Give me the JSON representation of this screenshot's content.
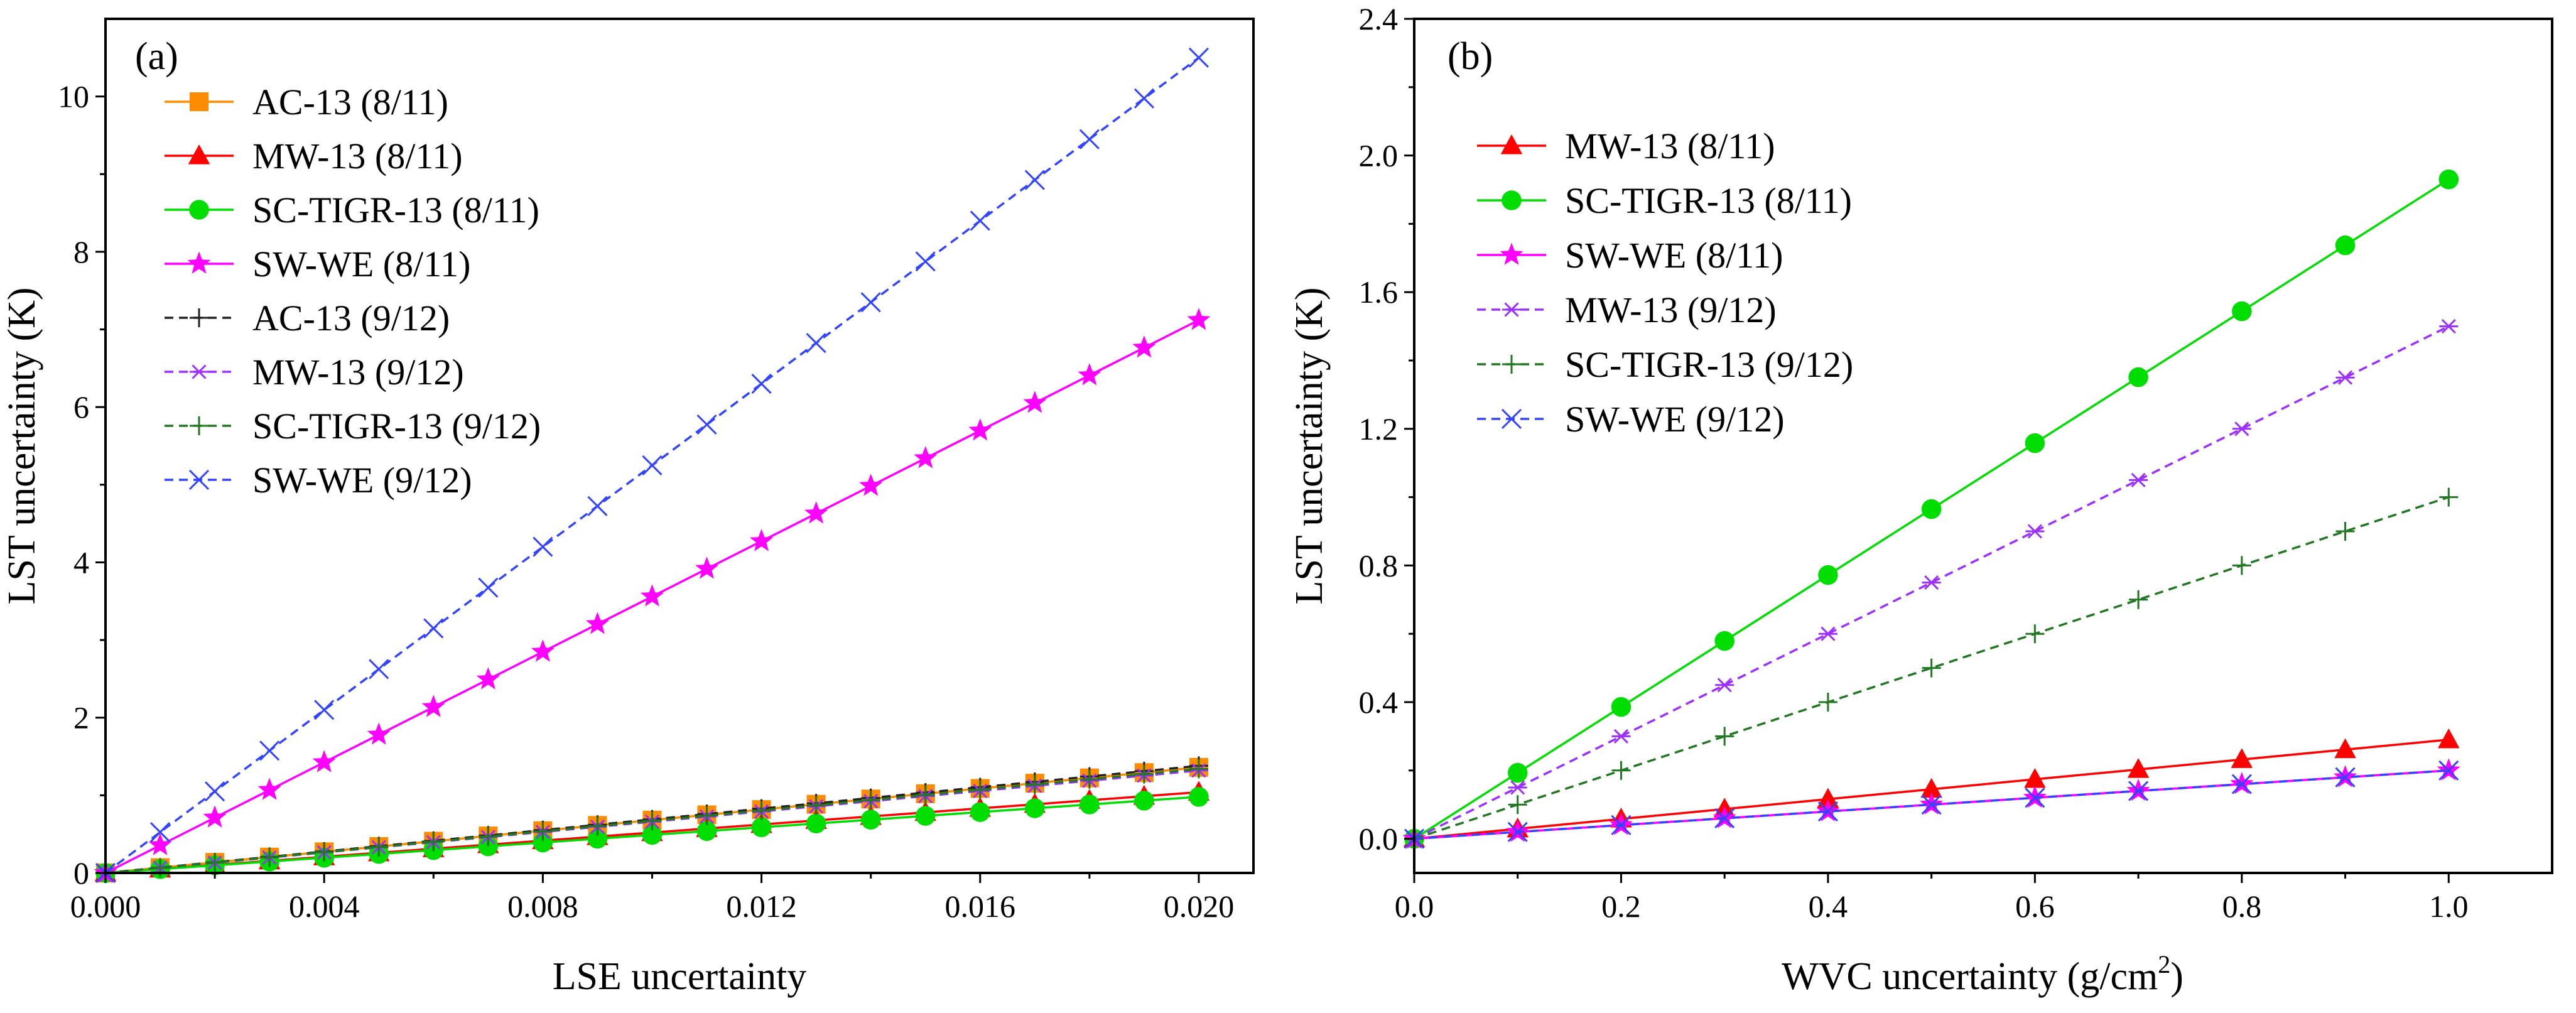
{
  "chart_data": [
    {
      "type": "line",
      "panel_label": "(a)",
      "xlabel": "LSE uncertainty",
      "ylabel": "LST uncertainty (K)",
      "xlim": [
        0,
        0.021
      ],
      "ylim": [
        0,
        11
      ],
      "xticks": [
        0,
        0.004,
        0.008,
        0.012,
        0.016,
        0.02
      ],
      "xtick_labels": [
        "0.000",
        "0.004",
        "0.008",
        "0.012",
        "0.016",
        "0.020"
      ],
      "yticks": [
        0,
        2,
        4,
        6,
        8,
        10
      ],
      "ytick_labels": [
        "0",
        "2",
        "4",
        "6",
        "8",
        "10"
      ],
      "x": [
        0,
        0.001,
        0.002,
        0.003,
        0.004,
        0.005,
        0.006,
        0.007,
        0.008,
        0.009,
        0.01,
        0.011,
        0.012,
        0.013,
        0.014,
        0.015,
        0.016,
        0.017,
        0.018,
        0.019,
        0.02
      ],
      "legend_position": "top-left",
      "series": [
        {
          "name": "AC-13 (8/11)",
          "color": "#ff8c00",
          "dash": "solid",
          "marker": "square",
          "slope": 68
        },
        {
          "name": "MW-13 (8/11)",
          "color": "#ff0000",
          "dash": "solid",
          "marker": "triangle",
          "slope": 52
        },
        {
          "name": "SC-TIGR-13 (8/11)",
          "color": "#00dd00",
          "dash": "solid",
          "marker": "circle",
          "slope": 49
        },
        {
          "name": "SW-WE (8/11)",
          "color": "#ff00ff",
          "dash": "solid",
          "marker": "star",
          "slope": 356
        },
        {
          "name": "AC-13 (9/12)",
          "color": "#222222",
          "dash": "dashed",
          "marker": "plus",
          "slope": 69
        },
        {
          "name": "MW-13 (9/12)",
          "color": "#9b30ff",
          "dash": "dashed",
          "marker": "asterisk",
          "slope": 66
        },
        {
          "name": "SC-TIGR-13 (9/12)",
          "color": "#227722",
          "dash": "dashed",
          "marker": "plus",
          "slope": 67
        },
        {
          "name": "SW-WE (9/12)",
          "color": "#3344ff",
          "dash": "dashed",
          "marker": "x",
          "slope": 525
        }
      ]
    },
    {
      "type": "line",
      "panel_label": "(b)",
      "xlabel": "WVC uncertainty (g/cm",
      "xlabel_sup": "2",
      "xlabel_end": ")",
      "ylabel": "LST uncertainty (K)",
      "xlim": [
        0,
        1.1
      ],
      "ylim": [
        -0.1,
        2.4
      ],
      "xticks": [
        0,
        0.2,
        0.4,
        0.6,
        0.8,
        1.0
      ],
      "xtick_labels": [
        "0.0",
        "0.2",
        "0.4",
        "0.6",
        "0.8",
        "1.0"
      ],
      "yticks": [
        0,
        0.4,
        0.8,
        1.2,
        1.6,
        2.0,
        2.4
      ],
      "ytick_labels": [
        "0.0",
        "0.4",
        "0.8",
        "1.2",
        "1.6",
        "2.0",
        "2.4"
      ],
      "x": [
        0,
        0.1,
        0.2,
        0.3,
        0.4,
        0.5,
        0.6,
        0.7,
        0.8,
        0.9,
        1.0
      ],
      "legend_position": "top-left",
      "series": [
        {
          "name": "MW-13 (8/11)",
          "color": "#ff0000",
          "dash": "solid",
          "marker": "triangle",
          "slope": 0.29
        },
        {
          "name": "SC-TIGR-13 (8/11)",
          "color": "#00dd00",
          "dash": "solid",
          "marker": "circle",
          "slope": 1.93
        },
        {
          "name": "SW-WE (8/11)",
          "color": "#ff00ff",
          "dash": "solid",
          "marker": "star",
          "slope": 0.2
        },
        {
          "name": "MW-13 (9/12)",
          "color": "#9b30ff",
          "dash": "dashed",
          "marker": "asterisk",
          "slope": 1.5
        },
        {
          "name": "SC-TIGR-13 (9/12)",
          "color": "#227722",
          "dash": "dashed",
          "marker": "plus",
          "slope": 1.0
        },
        {
          "name": "SW-WE (9/12)",
          "color": "#3344ff",
          "dash": "dashed",
          "marker": "x",
          "slope": 0.2
        }
      ]
    }
  ]
}
